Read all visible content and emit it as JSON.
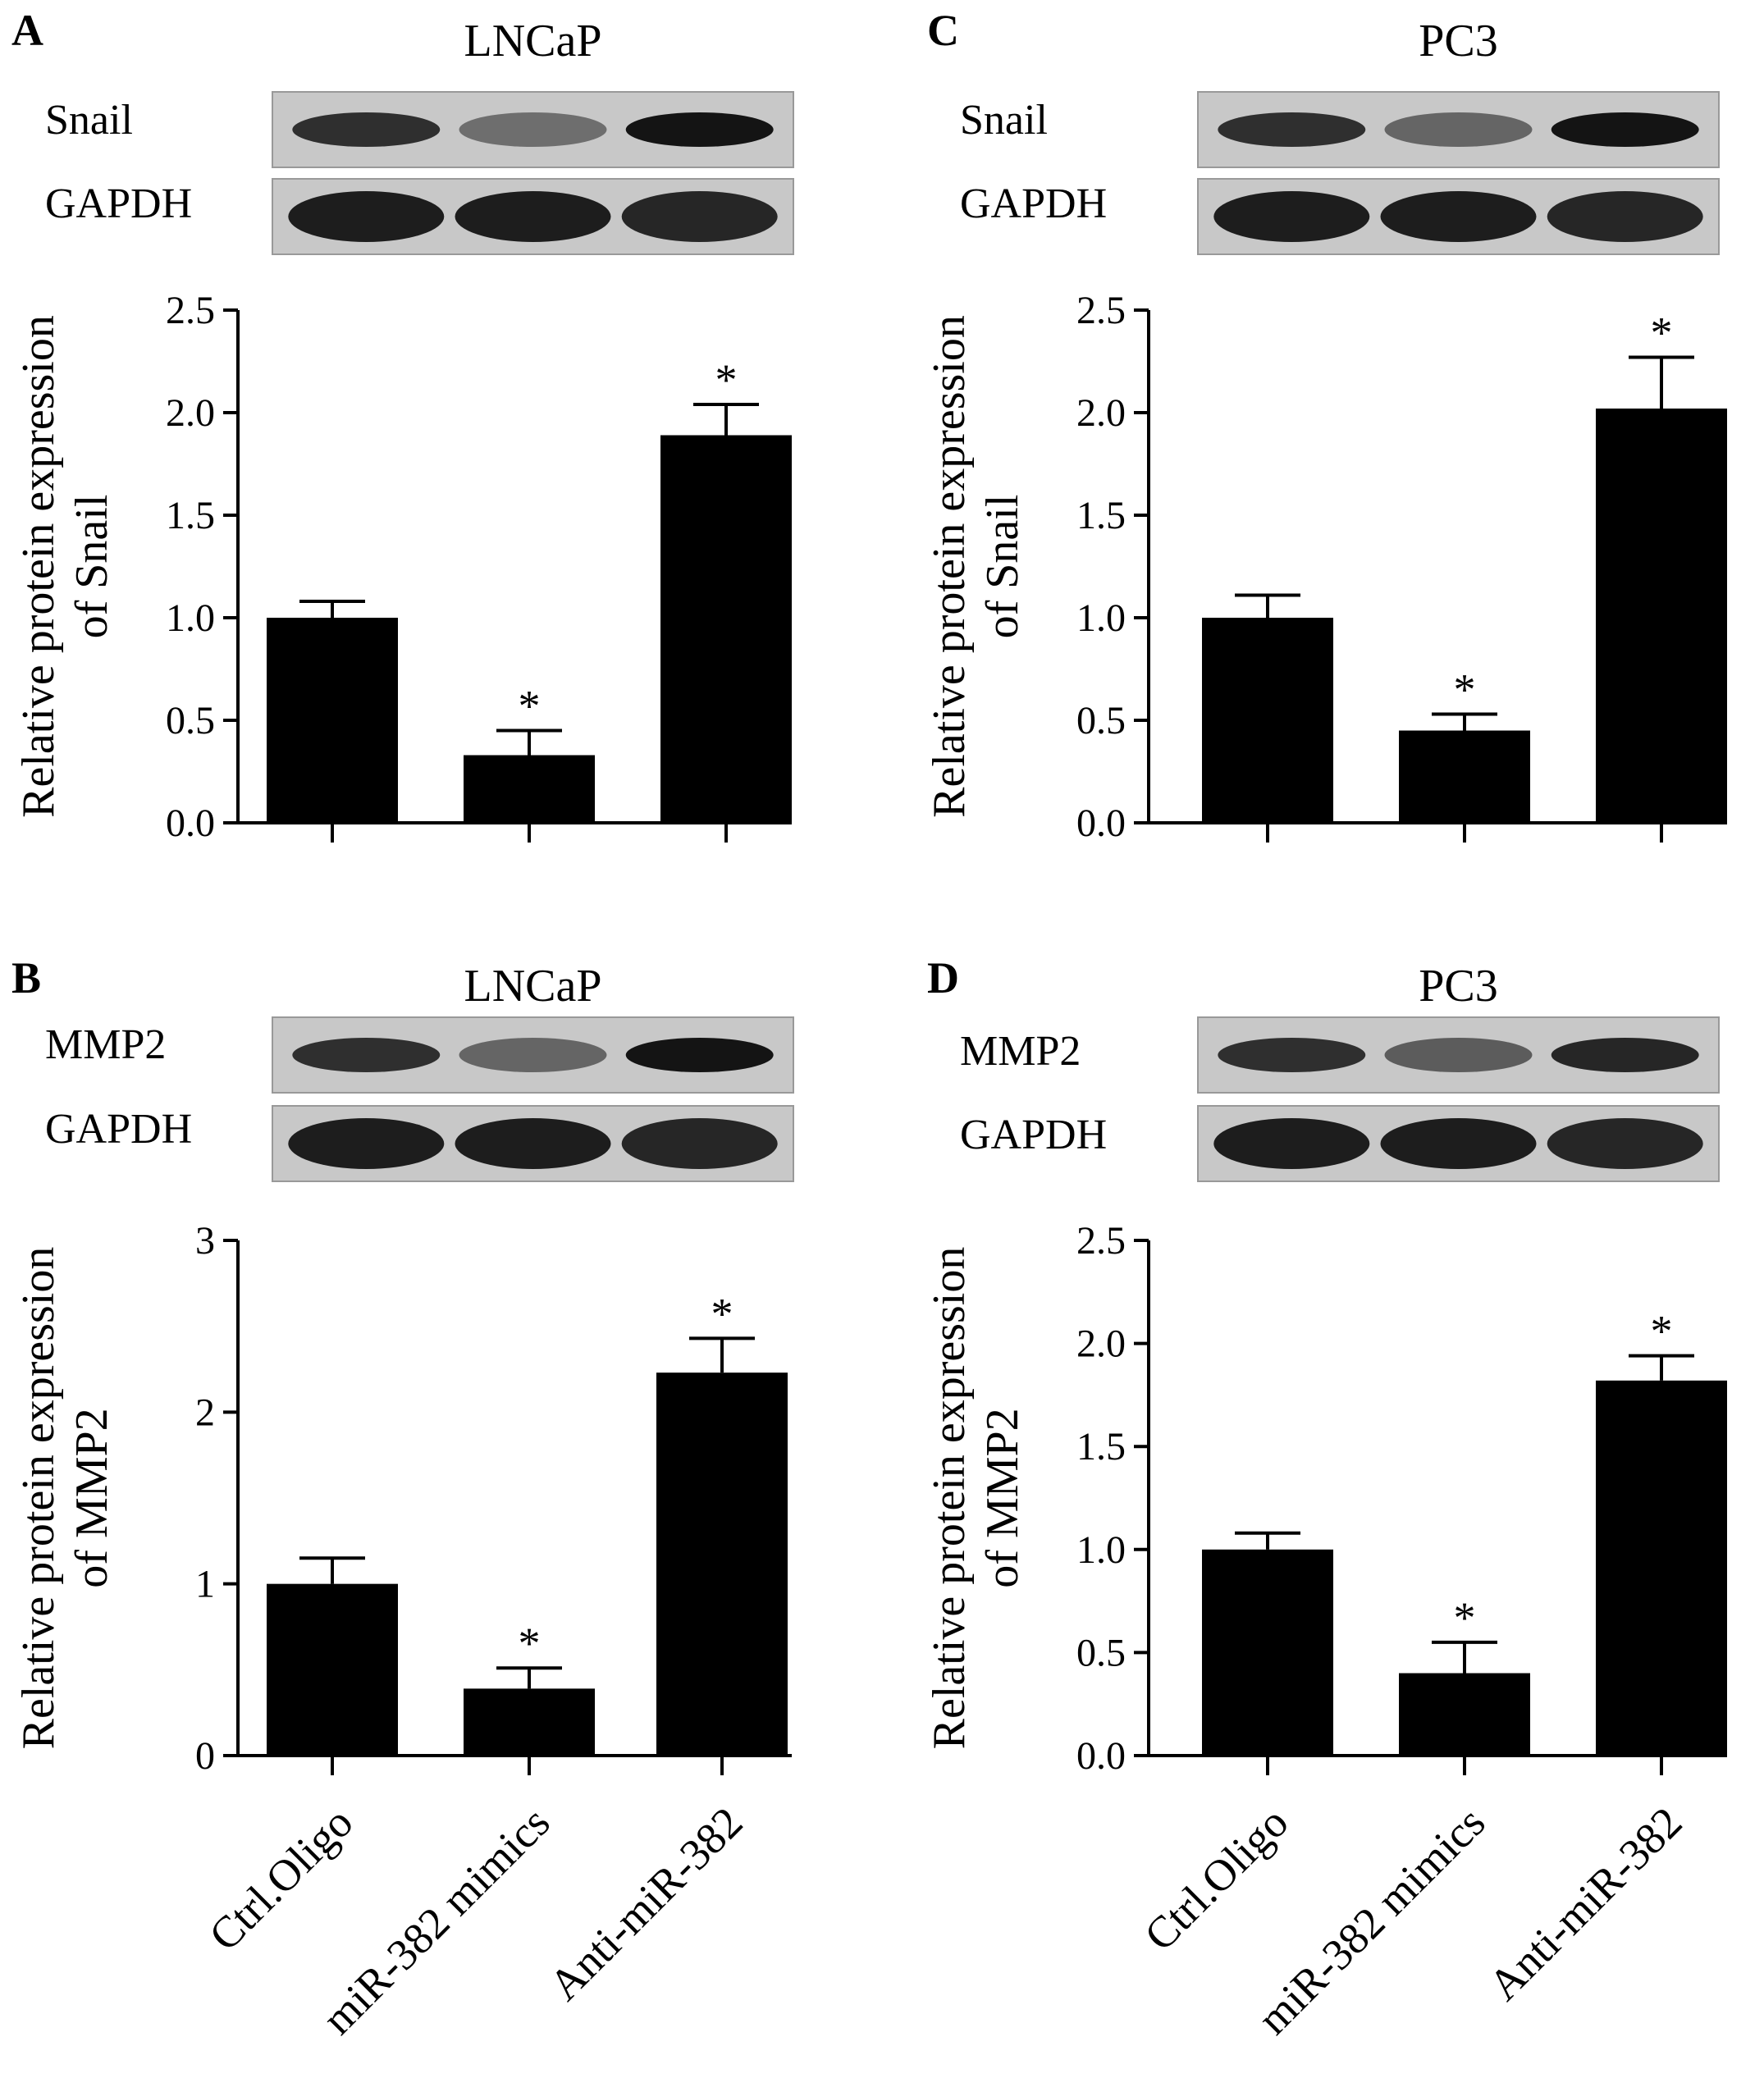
{
  "figure": {
    "categories": [
      "Ctrl.Oligo",
      "miR-382 mimics",
      "Anti-miR-382"
    ],
    "blot_loading_control": "GAPDH"
  },
  "colors": {
    "bar": "#000000",
    "blot_background": "#c8c8c8",
    "blot_band": "#1a1a1a",
    "axis": "#000000"
  },
  "chart_data": [
    {
      "type": "bar",
      "panel": "A",
      "cell_line": "LNCaP",
      "blot_protein": "Snail",
      "band_intensity": [
        0.85,
        0.5,
        1.0
      ],
      "gapdh_intensity": [
        0.95,
        0.95,
        0.9
      ],
      "ylabel_lines": [
        "Relative protein expression",
        "of Snail"
      ],
      "yticks": [
        "0.0",
        "0.5",
        "1.0",
        "1.5",
        "2.0",
        "2.5"
      ],
      "ylim": [
        0,
        2.5
      ],
      "categories": [
        "Ctrl.Oligo",
        "miR-382 mimics",
        "Anti-miR-382"
      ],
      "values": [
        1.0,
        0.33,
        1.89
      ],
      "errors": [
        0.08,
        0.12,
        0.15
      ],
      "significance": [
        "",
        "*",
        "*"
      ]
    },
    {
      "type": "bar",
      "panel": "B",
      "cell_line": "LNCaP",
      "blot_protein": "MMP2",
      "band_intensity": [
        0.85,
        0.55,
        1.0
      ],
      "gapdh_intensity": [
        0.95,
        0.95,
        0.9
      ],
      "ylabel_lines": [
        "Relative protein expression",
        "of MMP2"
      ],
      "yticks": [
        "0",
        "1",
        "2",
        "3"
      ],
      "ylim": [
        0,
        3
      ],
      "categories": [
        "Ctrl.Oligo",
        "miR-382 mimics",
        "Anti-miR-382"
      ],
      "values": [
        1.0,
        0.39,
        2.23
      ],
      "errors": [
        0.15,
        0.12,
        0.2
      ],
      "significance": [
        "",
        "*",
        "*"
      ]
    },
    {
      "type": "bar",
      "panel": "C",
      "cell_line": "PC3",
      "blot_protein": "Snail",
      "band_intensity": [
        0.85,
        0.55,
        1.0
      ],
      "gapdh_intensity": [
        0.95,
        0.95,
        0.9
      ],
      "ylabel_lines": [
        "Relative protein expression",
        "of Snail"
      ],
      "yticks": [
        "0.0",
        "0.5",
        "1.0",
        "1.5",
        "2.0",
        "2.5"
      ],
      "ylim": [
        0,
        2.5
      ],
      "categories": [
        "Ctrl.Oligo",
        "miR-382 mimics",
        "Anti-miR-382"
      ],
      "values": [
        1.0,
        0.45,
        2.02
      ],
      "errors": [
        0.11,
        0.08,
        0.25
      ],
      "significance": [
        "",
        "*",
        "*"
      ]
    },
    {
      "type": "bar",
      "panel": "D",
      "cell_line": "PC3",
      "blot_protein": "MMP2",
      "band_intensity": [
        0.85,
        0.6,
        0.9
      ],
      "gapdh_intensity": [
        0.95,
        0.95,
        0.9
      ],
      "ylabel_lines": [
        "Relative protein expression",
        "of MMP2"
      ],
      "yticks": [
        "0.0",
        "0.5",
        "1.0",
        "1.5",
        "2.0",
        "2.5"
      ],
      "ylim": [
        0,
        2.5
      ],
      "categories": [
        "Ctrl.Oligo",
        "miR-382 mimics",
        "Anti-miR-382"
      ],
      "values": [
        1.0,
        0.4,
        1.82
      ],
      "errors": [
        0.08,
        0.15,
        0.12
      ],
      "significance": [
        "",
        "*",
        "*"
      ]
    }
  ]
}
